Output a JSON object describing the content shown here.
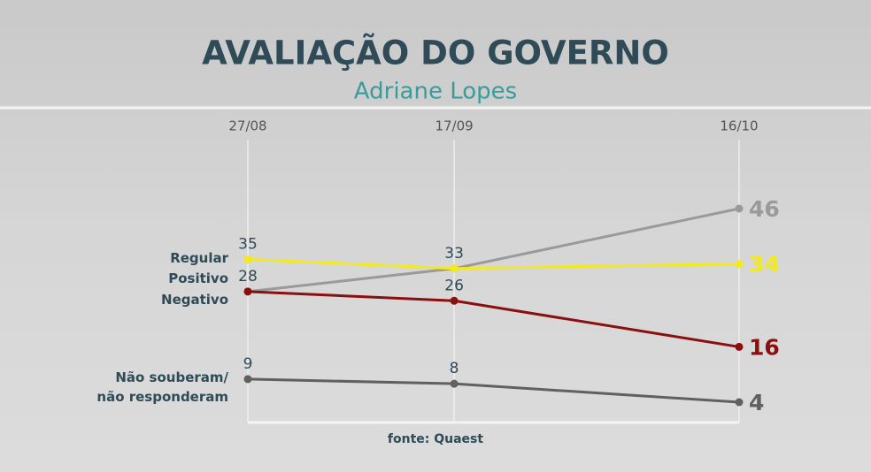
{
  "chart_data": {
    "type": "line",
    "title": "AVALIAÇÃO DO GOVERNO",
    "subtitle": "Adriane Lopes",
    "categories": [
      "27/08",
      "17/09",
      "16/10"
    ],
    "series": [
      {
        "name": "Regular",
        "color": "#f2ea1c",
        "values": [
          35,
          33,
          34
        ]
      },
      {
        "name": "Positivo",
        "color": "#9a9a9a",
        "values": [
          28,
          33,
          46
        ]
      },
      {
        "name": "Negativo",
        "color": "#8a0f0f",
        "values": [
          28,
          26,
          16
        ]
      },
      {
        "name": "Não souberam/\nnão responderam",
        "color": "#606060",
        "values": [
          9,
          8,
          4
        ]
      }
    ],
    "source": "fonte: Quaest"
  }
}
